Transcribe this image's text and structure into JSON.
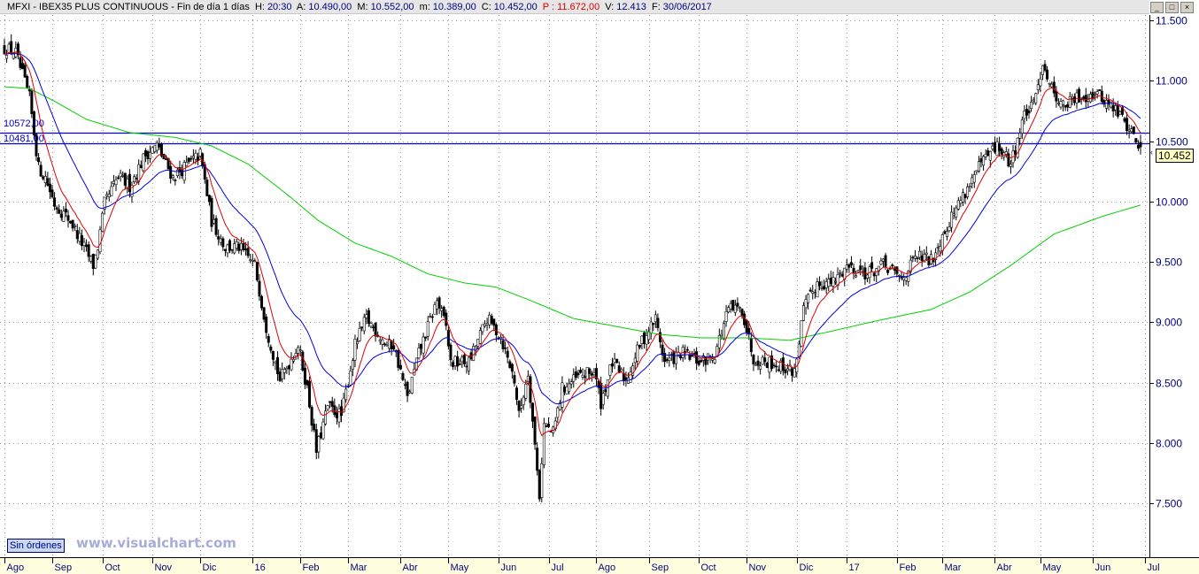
{
  "header": {
    "title": "MFXI - IBEX35 PLUS CONTINUOUS - Fin de día 1 días",
    "h_label": "H:",
    "h_value": "20:30",
    "a_label": "A:",
    "a_value": "10.490,00",
    "m_label": "M:",
    "m_value": "10.552,00",
    "lo_label": "m:",
    "lo_value": "10.389,00",
    "c_label": "C:",
    "c_value": "10.452,00",
    "p_label": "P :",
    "p_value": "11.672,00",
    "v_label": "V:",
    "v_value": "12.413",
    "f_label": "F:",
    "f_value": "30/06/2017"
  },
  "window_buttons": {
    "minimize": "_",
    "maximize": "□",
    "close": "×"
  },
  "orders_badge": "Sin órdenes",
  "watermark": "www.visualchart.com",
  "last_price_label": "10.452",
  "colors": {
    "candle": "#000000",
    "ma_short": "#e00000",
    "ma_mid": "#0000e0",
    "ma_long": "#00d000",
    "hline": "#0000e0",
    "axis_bg": "#ffffe0",
    "axis_text": "#000080"
  },
  "chart_data": {
    "type": "candlestick",
    "start_date": "2015-08-03",
    "end_date": "2017-06-30",
    "last_bar": {
      "open": 10490,
      "high": 10552,
      "low": 10389,
      "close": 10452
    },
    "ylim": [
      7100,
      11600
    ],
    "y_ticks": [
      7500,
      8000,
      8500,
      9000,
      9500,
      10000,
      10500,
      11000,
      11500
    ],
    "y_tick_labels": [
      "7.500",
      "8.000",
      "8.500",
      "9.000",
      "9.500",
      "10.000",
      "10.500",
      "11.000",
      "11.500"
    ],
    "x_tick_labels": [
      {
        "date": "2015-08",
        "label": "Ago"
      },
      {
        "date": "2015-09",
        "label": "Sep"
      },
      {
        "date": "2015-10",
        "label": "Oct"
      },
      {
        "date": "2015-11",
        "label": "Nov"
      },
      {
        "date": "2015-12",
        "label": "Dic"
      },
      {
        "date": "2016-01",
        "label": "16"
      },
      {
        "date": "2016-02",
        "label": "Feb"
      },
      {
        "date": "2016-03",
        "label": "Mar"
      },
      {
        "date": "2016-04",
        "label": "Abr"
      },
      {
        "date": "2016-05",
        "label": "May"
      },
      {
        "date": "2016-06",
        "label": "Jun"
      },
      {
        "date": "2016-07",
        "label": "Jul"
      },
      {
        "date": "2016-08",
        "label": "Ago"
      },
      {
        "date": "2016-09",
        "label": "Sep"
      },
      {
        "date": "2016-10",
        "label": "Oct"
      },
      {
        "date": "2016-11",
        "label": "Nov"
      },
      {
        "date": "2016-12",
        "label": "Dic"
      },
      {
        "date": "2017-01",
        "label": "17"
      },
      {
        "date": "2017-02",
        "label": "Feb"
      },
      {
        "date": "2017-03",
        "label": "Mar"
      },
      {
        "date": "2017-04",
        "label": "Abr"
      },
      {
        "date": "2017-05",
        "label": "May"
      },
      {
        "date": "2017-06",
        "label": "Jun"
      },
      {
        "date": "2017-07",
        "label": "Jul"
      }
    ],
    "horizontal_lines": [
      {
        "value": 10572,
        "label": "10572,00"
      },
      {
        "value": 10481,
        "label": "10481,00"
      }
    ],
    "close_path": [
      [
        "2015-08-04",
        11265
      ],
      [
        "2015-08-10",
        11230
      ],
      [
        "2015-08-18",
        10860
      ],
      [
        "2015-08-24",
        10280
      ],
      [
        "2015-08-27",
        10200
      ],
      [
        "2015-09-02",
        9980
      ],
      [
        "2015-09-11",
        9840
      ],
      [
        "2015-09-25",
        9470
      ],
      [
        "2015-09-29",
        9620
      ],
      [
        "2015-10-02",
        9980
      ],
      [
        "2015-10-12",
        10200
      ],
      [
        "2015-10-19",
        10130
      ],
      [
        "2015-10-28",
        10390
      ],
      [
        "2015-11-04",
        10460
      ],
      [
        "2015-11-13",
        10200
      ],
      [
        "2015-11-20",
        10280
      ],
      [
        "2015-12-01",
        10390
      ],
      [
        "2015-12-08",
        9840
      ],
      [
        "2015-12-16",
        9620
      ],
      [
        "2015-12-24",
        9620
      ],
      [
        "2016-01-04",
        9470
      ],
      [
        "2016-01-11",
        8960
      ],
      [
        "2016-01-19",
        8520
      ],
      [
        "2016-01-29",
        8810
      ],
      [
        "2016-02-04",
        8450
      ],
      [
        "2016-02-10",
        7930
      ],
      [
        "2016-02-17",
        8300
      ],
      [
        "2016-02-25",
        8225
      ],
      [
        "2016-03-04",
        8810
      ],
      [
        "2016-03-11",
        9030
      ],
      [
        "2016-03-24",
        8810
      ],
      [
        "2016-03-29",
        8810
      ],
      [
        "2016-04-06",
        8370
      ],
      [
        "2016-04-13",
        8740
      ],
      [
        "2016-04-25",
        9180
      ],
      [
        "2016-04-29",
        8960
      ],
      [
        "2016-05-03",
        8665
      ],
      [
        "2016-05-13",
        8665
      ],
      [
        "2016-05-25",
        9030
      ],
      [
        "2016-06-02",
        8880
      ],
      [
        "2016-06-10",
        8520
      ],
      [
        "2016-06-14",
        8225
      ],
      [
        "2016-06-20",
        8590
      ],
      [
        "2016-06-27",
        7565
      ],
      [
        "2016-06-29",
        8150
      ],
      [
        "2016-07-05",
        8080
      ],
      [
        "2016-07-11",
        8450
      ],
      [
        "2016-07-21",
        8555
      ],
      [
        "2016-07-29",
        8590
      ],
      [
        "2016-08-03",
        8335
      ],
      [
        "2016-08-10",
        8665
      ],
      [
        "2016-08-18",
        8520
      ],
      [
        "2016-08-26",
        8810
      ],
      [
        "2016-09-06",
        9030
      ],
      [
        "2016-09-12",
        8665
      ],
      [
        "2016-09-22",
        8740
      ],
      [
        "2016-10-04",
        8665
      ],
      [
        "2016-10-12",
        8740
      ],
      [
        "2016-10-20",
        9105
      ],
      [
        "2016-10-28",
        9105
      ],
      [
        "2016-11-04",
        8700
      ],
      [
        "2016-11-16",
        8665
      ],
      [
        "2016-11-30",
        8590
      ],
      [
        "2016-12-06",
        9105
      ],
      [
        "2016-12-14",
        9325
      ],
      [
        "2016-12-23",
        9325
      ],
      [
        "2017-01-02",
        9470
      ],
      [
        "2017-01-13",
        9400
      ],
      [
        "2017-01-24",
        9470
      ],
      [
        "2017-02-03",
        9360
      ],
      [
        "2017-02-14",
        9545
      ],
      [
        "2017-02-22",
        9510
      ],
      [
        "2017-03-02",
        9765
      ],
      [
        "2017-03-13",
        10020
      ],
      [
        "2017-03-24",
        10310
      ],
      [
        "2017-04-04",
        10460
      ],
      [
        "2017-04-12",
        10310
      ],
      [
        "2017-04-20",
        10720
      ],
      [
        "2017-04-26",
        10790
      ],
      [
        "2017-05-02",
        11155
      ],
      [
        "2017-05-08",
        10935
      ],
      [
        "2017-05-15",
        10790
      ],
      [
        "2017-05-24",
        10860
      ],
      [
        "2017-06-02",
        10900
      ],
      [
        "2017-06-09",
        10825
      ],
      [
        "2017-06-19",
        10720
      ],
      [
        "2017-06-30",
        10452
      ]
    ],
    "ma_long_path": [
      [
        "2015-08-03",
        10950
      ],
      [
        "2015-08-18",
        10935
      ],
      [
        "2015-09-02",
        10830
      ],
      [
        "2015-09-22",
        10680
      ],
      [
        "2015-10-19",
        10570
      ],
      [
        "2015-11-16",
        10530
      ],
      [
        "2015-12-08",
        10460
      ],
      [
        "2015-12-30",
        10310
      ],
      [
        "2016-01-22",
        10060
      ],
      [
        "2016-02-11",
        9840
      ],
      [
        "2016-03-04",
        9655
      ],
      [
        "2016-03-28",
        9545
      ],
      [
        "2016-04-19",
        9400
      ],
      [
        "2016-05-11",
        9325
      ],
      [
        "2016-05-31",
        9290
      ],
      [
        "2016-06-21",
        9180
      ],
      [
        "2016-07-18",
        9030
      ],
      [
        "2016-08-15",
        8960
      ],
      [
        "2016-09-07",
        8900
      ],
      [
        "2016-10-04",
        8870
      ],
      [
        "2016-11-01",
        8870
      ],
      [
        "2016-11-28",
        8850
      ],
      [
        "2016-12-21",
        8920
      ],
      [
        "2017-01-20",
        9015
      ],
      [
        "2017-02-22",
        9105
      ],
      [
        "2017-03-17",
        9250
      ],
      [
        "2017-04-12",
        9470
      ],
      [
        "2017-05-09",
        9730
      ],
      [
        "2017-06-07",
        9875
      ],
      [
        "2017-06-30",
        9970
      ]
    ]
  }
}
